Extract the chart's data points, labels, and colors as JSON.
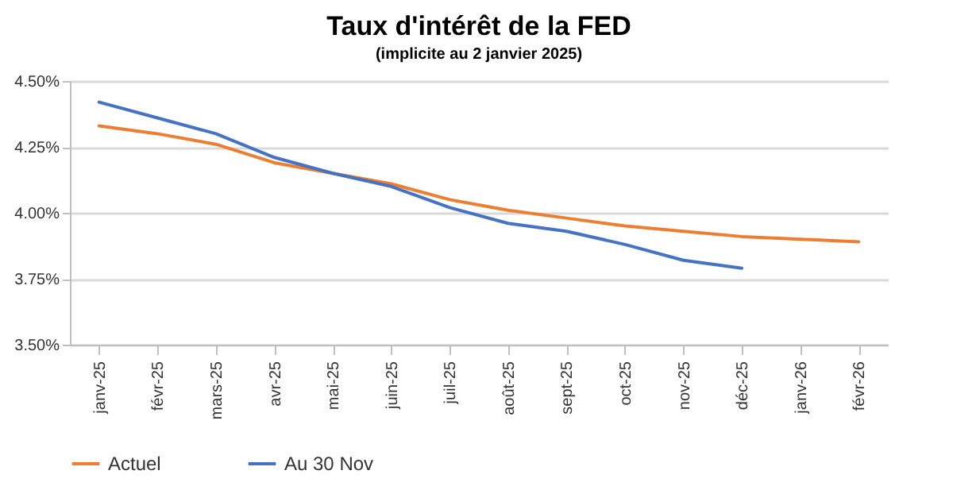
{
  "chart_data": {
    "type": "line",
    "title": "Taux d'intérêt de la FED",
    "subtitle": "(implicite au 2 janvier 2025)",
    "categories": [
      "janv-25",
      "févr-25",
      "mars-25",
      "avr-25",
      "mai-25",
      "juin-25",
      "juil-25",
      "août-25",
      "sept-25",
      "oct-25",
      "nov-25",
      "déc-25",
      "janv-26",
      "févr-26"
    ],
    "series": [
      {
        "name": "Actuel",
        "color": "#ed7d31",
        "values": [
          4.33,
          4.3,
          4.26,
          4.19,
          4.15,
          4.11,
          4.05,
          4.01,
          3.98,
          3.95,
          3.93,
          3.91,
          3.9,
          3.89
        ]
      },
      {
        "name": "Au 30 Nov",
        "color": "#4472c4",
        "values": [
          4.42,
          4.36,
          4.3,
          4.21,
          4.15,
          4.1,
          4.02,
          3.96,
          3.93,
          3.88,
          3.82,
          3.79,
          null,
          null
        ]
      }
    ],
    "ylim": [
      3.5,
      4.5
    ],
    "yticks": [
      {
        "value": 3.5,
        "label": "3.50%"
      },
      {
        "value": 3.75,
        "label": "3.75%"
      },
      {
        "value": 4.0,
        "label": "4.00%"
      },
      {
        "value": 4.25,
        "label": "4.25%"
      },
      {
        "value": 4.5,
        "label": "4.50%"
      }
    ],
    "grid": "y",
    "legend": "bottom",
    "marker": "none",
    "line_style": "solid"
  }
}
